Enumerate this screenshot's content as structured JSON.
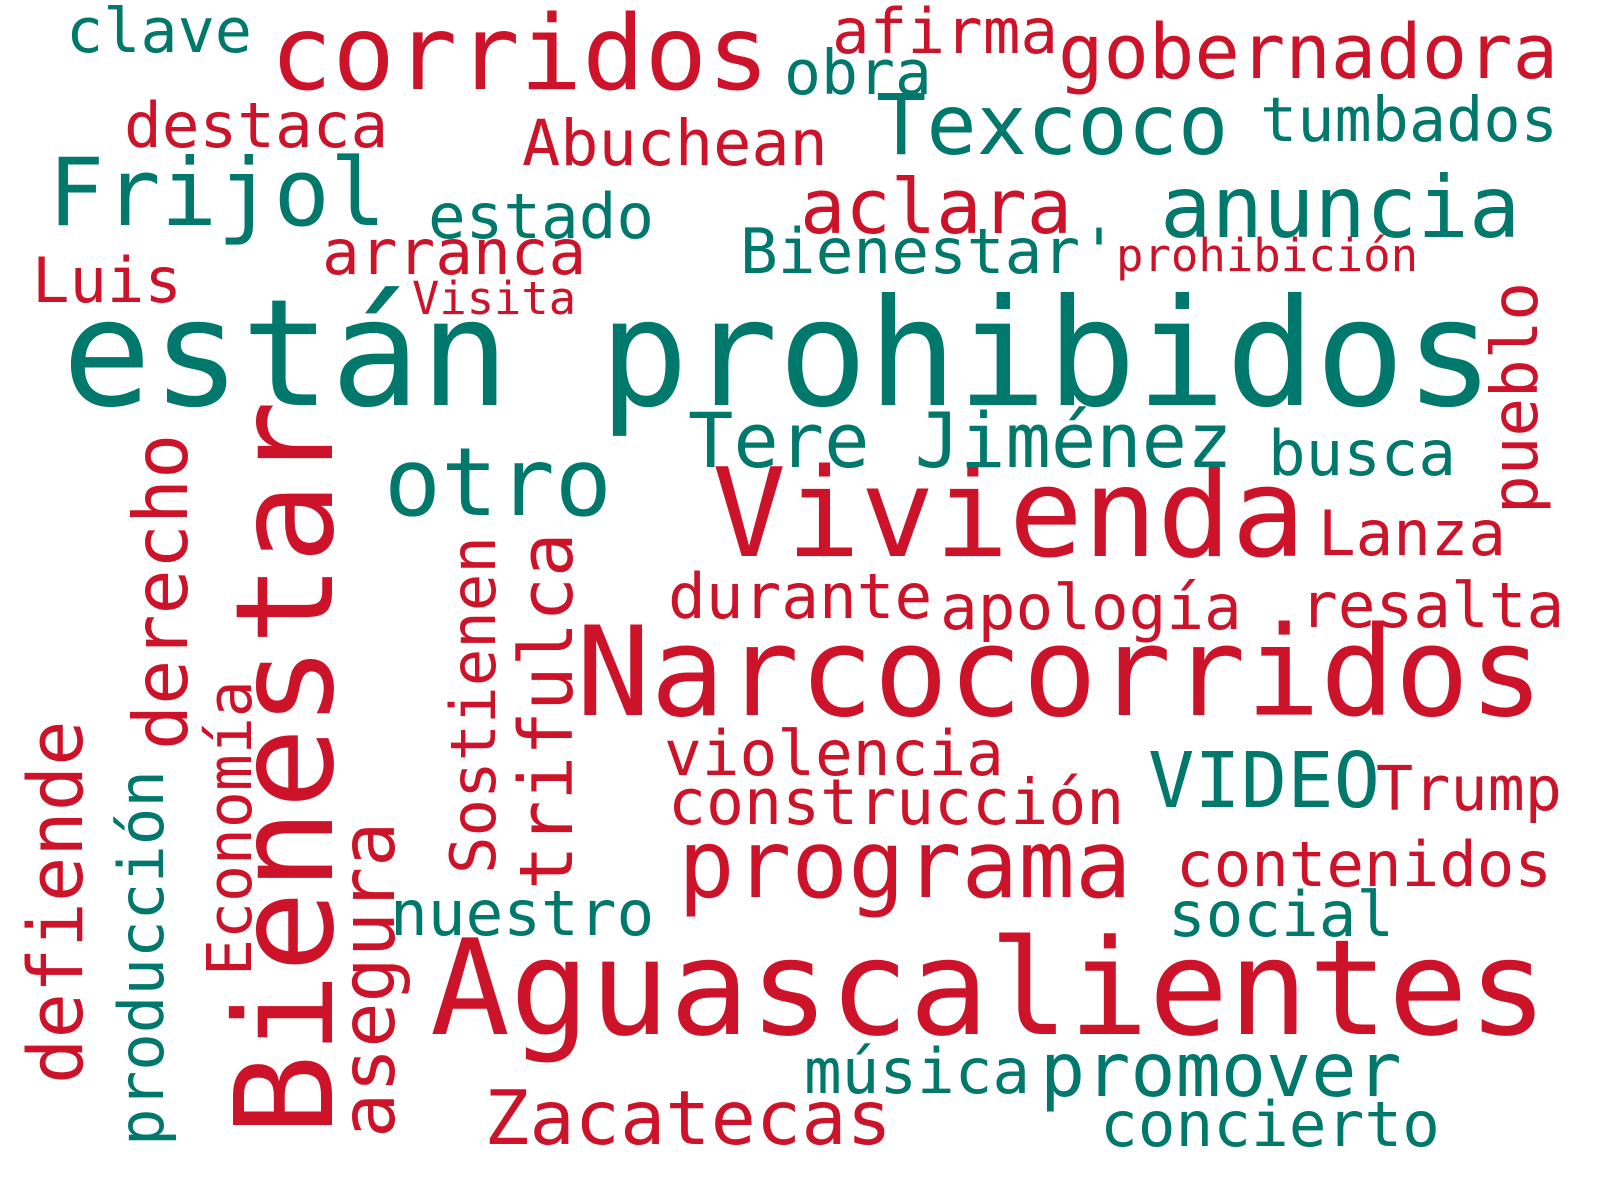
{
  "colors": {
    "red": "#cd1329",
    "teal": "#00786c",
    "background": "#ffffff"
  },
  "words": [
    {
      "id": "estan-prohibidos",
      "text": "están prohibidos",
      "color": "teal",
      "vertical": false
    },
    {
      "id": "aguascalientes",
      "text": "Aguascalientes",
      "color": "red",
      "vertical": false
    },
    {
      "id": "bienestar",
      "text": "Bienestar",
      "color": "red",
      "vertical": true
    },
    {
      "id": "narcocorridos",
      "text": "Narcocorridos",
      "color": "red",
      "vertical": false
    },
    {
      "id": "vivienda",
      "text": "Vivienda",
      "color": "red",
      "vertical": false
    },
    {
      "id": "corridos",
      "text": "corridos",
      "color": "red",
      "vertical": false
    },
    {
      "id": "texcoco",
      "text": "Texcoco",
      "color": "teal",
      "vertical": false
    },
    {
      "id": "frijol",
      "text": "Frijol",
      "color": "teal",
      "vertical": false
    },
    {
      "id": "anuncia",
      "text": "anuncia",
      "color": "teal",
      "vertical": false
    },
    {
      "id": "gobernadora",
      "text": "gobernadora",
      "color": "red",
      "vertical": false
    },
    {
      "id": "otro",
      "text": "otro",
      "color": "teal",
      "vertical": false
    },
    {
      "id": "programa",
      "text": "programa",
      "color": "red",
      "vertical": false
    },
    {
      "id": "aclara",
      "text": "aclara",
      "color": "red",
      "vertical": false
    },
    {
      "id": "tere-jimenez",
      "text": "Tere Jiménez",
      "color": "teal",
      "vertical": false
    },
    {
      "id": "zacatecas",
      "text": "Zacatecas",
      "color": "red",
      "vertical": false
    },
    {
      "id": "promover",
      "text": "promover",
      "color": "teal",
      "vertical": false
    },
    {
      "id": "video",
      "text": "VIDEO",
      "color": "teal",
      "vertical": false
    },
    {
      "id": "trifulca",
      "text": "trifulca",
      "color": "red",
      "vertical": true
    },
    {
      "id": "derecho",
      "text": "derecho",
      "color": "red",
      "vertical": true
    },
    {
      "id": "defiende",
      "text": "defiende",
      "color": "red",
      "vertical": true
    },
    {
      "id": "asegura",
      "text": "asegura",
      "color": "red",
      "vertical": true
    },
    {
      "id": "abuchean",
      "text": "Abuchean",
      "color": "red",
      "vertical": false
    },
    {
      "id": "tumbados",
      "text": "tumbados",
      "color": "teal",
      "vertical": false
    },
    {
      "id": "destaca",
      "text": "destaca",
      "color": "red",
      "vertical": false
    },
    {
      "id": "arranca",
      "text": "arranca",
      "color": "red",
      "vertical": false
    },
    {
      "id": "estado",
      "text": "estado",
      "color": "teal",
      "vertical": false
    },
    {
      "id": "bienestar-quote",
      "text": "Bienestar'",
      "color": "teal",
      "vertical": false
    },
    {
      "id": "afirma",
      "text": "afirma",
      "color": "red",
      "vertical": false
    },
    {
      "id": "obra",
      "text": "obra",
      "color": "teal",
      "vertical": false
    },
    {
      "id": "clave",
      "text": "clave",
      "color": "teal",
      "vertical": false
    },
    {
      "id": "luis",
      "text": "Luis",
      "color": "red",
      "vertical": false
    },
    {
      "id": "visita",
      "text": "Visita",
      "color": "red",
      "vertical": false
    },
    {
      "id": "prohibicion",
      "text": "prohibición",
      "color": "red",
      "vertical": false
    },
    {
      "id": "busca",
      "text": "busca",
      "color": "teal",
      "vertical": false
    },
    {
      "id": "pueblo",
      "text": "pueblo",
      "color": "red",
      "vertical": true
    },
    {
      "id": "lanza",
      "text": "Lanza",
      "color": "red",
      "vertical": false
    },
    {
      "id": "durante",
      "text": "durante",
      "color": "red",
      "vertical": false
    },
    {
      "id": "apologia",
      "text": "apología",
      "color": "red",
      "vertical": false
    },
    {
      "id": "resalta",
      "text": "resalta",
      "color": "red",
      "vertical": false
    },
    {
      "id": "violencia",
      "text": "violencia",
      "color": "red",
      "vertical": false
    },
    {
      "id": "construccion",
      "text": "construcción",
      "color": "red",
      "vertical": false
    },
    {
      "id": "trump",
      "text": "Trump",
      "color": "red",
      "vertical": false
    },
    {
      "id": "contenidos",
      "text": "contenidos",
      "color": "red",
      "vertical": false
    },
    {
      "id": "social",
      "text": "social",
      "color": "teal",
      "vertical": false
    },
    {
      "id": "nuestro",
      "text": "nuestro",
      "color": "teal",
      "vertical": false
    },
    {
      "id": "musica",
      "text": "música",
      "color": "teal",
      "vertical": false
    },
    {
      "id": "concierto",
      "text": "concierto",
      "color": "teal",
      "vertical": false
    },
    {
      "id": "sostienen",
      "text": "Sostienen",
      "color": "red",
      "vertical": true
    },
    {
      "id": "economia",
      "text": "Economía",
      "color": "red",
      "vertical": true
    },
    {
      "id": "produccion",
      "text": "producción",
      "color": "teal",
      "vertical": true
    }
  ]
}
